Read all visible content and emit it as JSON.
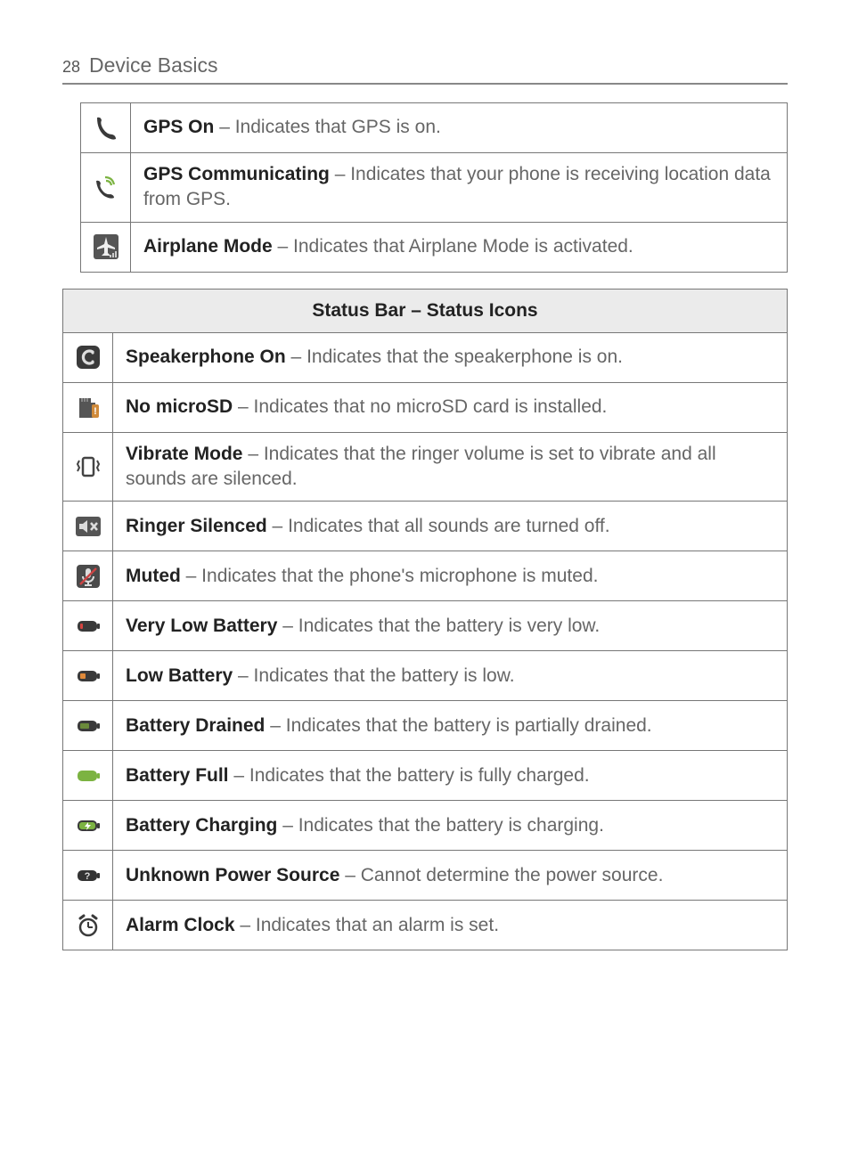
{
  "page": {
    "number": "28",
    "section": "Device Basics"
  },
  "colors": {
    "border": "#777777",
    "header_bg": "#ebebeb",
    "text_bold": "#222222",
    "text_desc": "#666666",
    "icon_dark": "#3a3a3a",
    "icon_gray": "#6a6a6a",
    "battery_red": "#d64541",
    "battery_orange": "#e08a3a",
    "battery_green_dark": "#6a8a3a",
    "battery_green": "#7cb342",
    "battery_unknown": "#333333"
  },
  "top_table": {
    "rows": [
      {
        "icon": "gps-on",
        "label": "GPS On",
        "desc": " – Indicates that GPS is on."
      },
      {
        "icon": "gps-comm",
        "label": "GPS Communicating",
        "desc": " – Indicates that your phone is receiving location data from GPS."
      },
      {
        "icon": "airplane",
        "label": "Airplane Mode",
        "desc": " – Indicates that Airplane Mode is activated."
      }
    ]
  },
  "status_table": {
    "header": "Status Bar – Status Icons",
    "rows": [
      {
        "icon": "speakerphone",
        "label": "Speakerphone On",
        "desc": " – Indicates that the speakerphone is on."
      },
      {
        "icon": "no-microsd",
        "label": "No microSD",
        "desc": " – Indicates that no microSD card is installed."
      },
      {
        "icon": "vibrate",
        "label": "Vibrate Mode",
        "desc": " – Indicates that the ringer volume is set to vibrate and all sounds are silenced."
      },
      {
        "icon": "ringer-silenced",
        "label": "Ringer Silenced",
        "desc": " – Indicates that all sounds are turned off."
      },
      {
        "icon": "muted",
        "label": "Muted",
        "desc": " – Indicates that the phone's microphone is muted."
      },
      {
        "icon": "battery-verylow",
        "label": "Very Low Battery",
        "desc": " – Indicates that the battery is very low."
      },
      {
        "icon": "battery-low",
        "label": "Low Battery",
        "desc": " – Indicates that the battery is low."
      },
      {
        "icon": "battery-drained",
        "label": "Battery Drained",
        "desc": " – Indicates that the battery is partially drained."
      },
      {
        "icon": "battery-full",
        "label": "Battery Full",
        "desc": " – Indicates that the battery is fully charged."
      },
      {
        "icon": "battery-charging",
        "label": "Battery Charging",
        "desc": " – Indicates that the battery is charging."
      },
      {
        "icon": "unknown-power",
        "label": "Unknown Power Source",
        "desc": " – Cannot determine the power source."
      },
      {
        "icon": "alarm",
        "label": "Alarm Clock",
        "desc": " – Indicates that an alarm is set."
      }
    ]
  }
}
